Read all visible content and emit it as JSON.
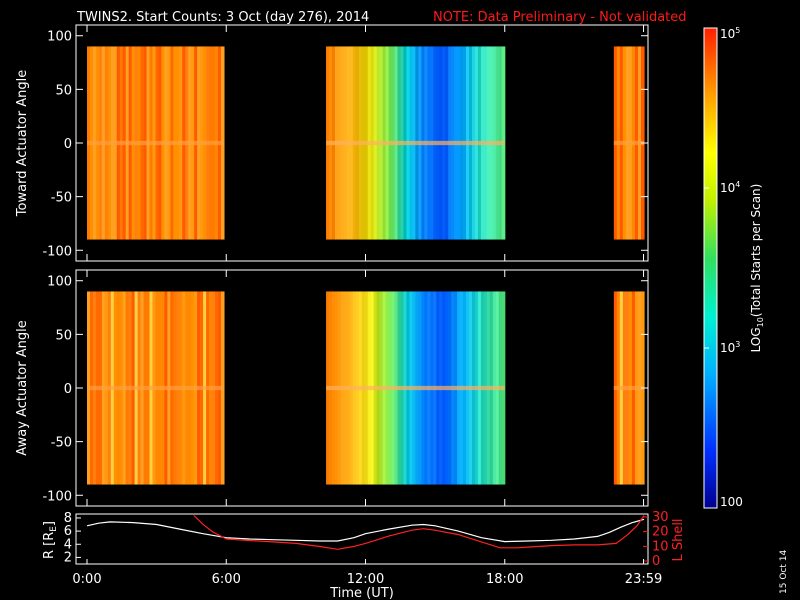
{
  "chart_data": [
    {
      "type": "heatmap",
      "panel": "top",
      "title": "TWINS2. Start Counts:  3 Oct (day 276), 2014",
      "note": "NOTE: Data Preliminary - Not validated",
      "ylabel": "Toward Actuator Angle",
      "ylim": [
        -110,
        110
      ],
      "yticks": [
        100,
        50,
        0,
        -50,
        -100
      ],
      "xlim": [
        0,
        24
      ],
      "data_y_range": [
        -90,
        90
      ],
      "segments": [
        {
          "start": 0.0,
          "end": 5.9,
          "level": "high"
        },
        {
          "start": 10.3,
          "end": 18.0,
          "level": "mixed"
        },
        {
          "start": 22.7,
          "end": 24.0,
          "level": "high"
        }
      ]
    },
    {
      "type": "heatmap",
      "panel": "middle",
      "ylabel": "Away Actuator Angle",
      "ylim": [
        -110,
        110
      ],
      "yticks": [
        100,
        50,
        0,
        -50,
        -100
      ],
      "xlim": [
        0,
        24
      ],
      "data_y_range": [
        -90,
        90
      ],
      "segments": [
        {
          "start": 0.0,
          "end": 5.9,
          "level": "high"
        },
        {
          "start": 10.3,
          "end": 18.0,
          "level": "mixed"
        },
        {
          "start": 22.7,
          "end": 24.0,
          "level": "high"
        }
      ]
    },
    {
      "type": "line",
      "panel": "bottom",
      "xlabel": "Time (UT)",
      "xticks": [
        "0:00",
        "6:00",
        "12:00",
        "18:00",
        "23:59"
      ],
      "xtick_values": [
        0,
        6,
        12,
        18,
        23.98
      ],
      "y_left_label": "R [R",
      "y_left_sub": "E",
      "y_left_ticks": [
        8,
        6,
        4,
        2
      ],
      "y_left_lim": [
        1,
        8.6
      ],
      "y_right_label": "L Shell",
      "y_right_ticks": [
        30,
        20,
        10,
        0
      ],
      "y_right_lim": [
        -2,
        32
      ],
      "series": [
        {
          "axis": "left",
          "color": "#ffffff",
          "x": [
            0,
            0.5,
            1,
            2,
            3,
            4,
            5,
            6,
            7,
            8,
            9,
            10,
            10.8,
            11.5,
            12,
            13,
            14,
            14.5,
            15,
            16,
            17,
            18,
            19,
            20,
            21,
            22,
            22.5,
            23,
            23.5,
            24
          ],
          "y": [
            6.8,
            7.2,
            7.4,
            7.3,
            7.0,
            6.3,
            5.6,
            5.0,
            4.8,
            4.7,
            4.6,
            4.5,
            4.5,
            5.0,
            5.6,
            6.3,
            6.9,
            7.0,
            6.8,
            6.0,
            5.0,
            4.4,
            4.5,
            4.6,
            4.8,
            5.2,
            5.8,
            6.6,
            7.3,
            7.8
          ]
        },
        {
          "axis": "right",
          "color": "#ff2020",
          "x": [
            4.6,
            5.0,
            5.4,
            6.0,
            7,
            8,
            9,
            10,
            10.8,
            11.5,
            12,
            13,
            14,
            14.5,
            15,
            16,
            17,
            17.8,
            18.5,
            19,
            20,
            21,
            22,
            22.8,
            23.3,
            23.7,
            24
          ],
          "y": [
            31,
            25,
            20,
            15,
            14,
            13,
            12,
            10,
            8,
            10,
            12,
            17,
            21,
            22,
            21,
            18,
            13,
            9,
            9,
            9.5,
            10.5,
            11,
            11,
            12,
            18,
            24,
            31
          ]
        }
      ]
    }
  ],
  "colorbar": {
    "ticks": [
      "10",
      "10",
      "10",
      "100"
    ],
    "tick_exponents": [
      "5",
      "4",
      "3",
      ""
    ],
    "tick_values": [
      100000,
      10000,
      1000,
      100
    ],
    "range": [
      100,
      100000
    ],
    "label": "LOG",
    "label_sub": "10",
    "label_rest": "(Total Starts per Scan)"
  },
  "date_stamp": "15 Oct 14"
}
